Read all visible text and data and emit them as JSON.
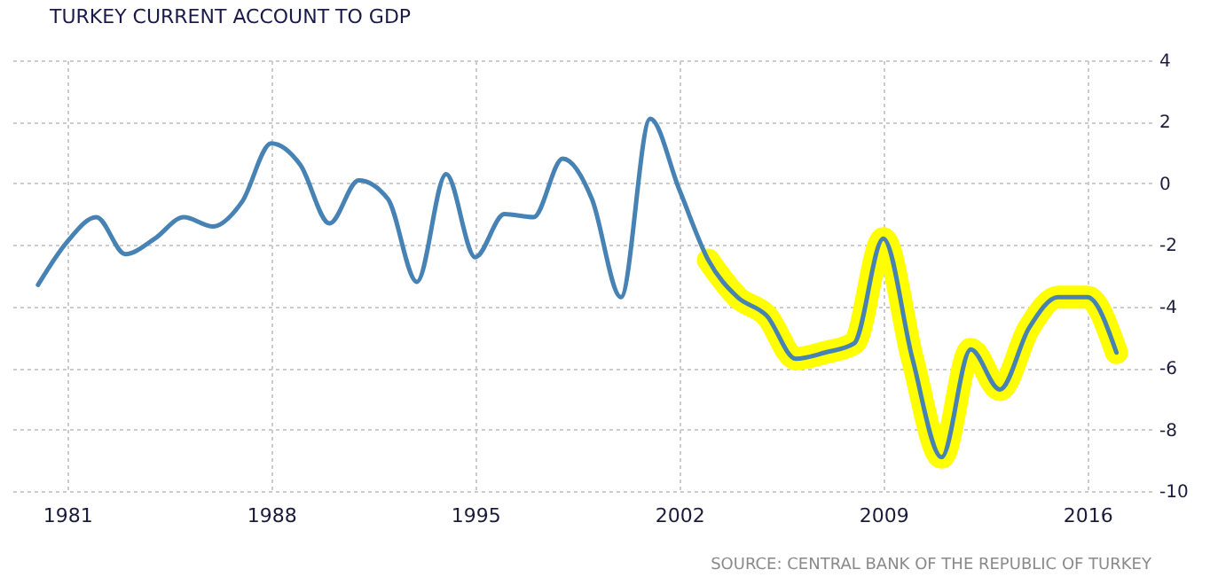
{
  "chart_data": {
    "type": "line",
    "title": "TURKEY CURRENT ACCOUNT TO GDP",
    "annotations": [
      "SOURCE: CENTRAL BANK OF THE REPUBLIC OF TURKEY"
    ],
    "x": [
      1980,
      1981,
      1982,
      1983,
      1984,
      1985,
      1986,
      1987,
      1988,
      1989,
      1990,
      1991,
      1992,
      1993,
      1994,
      1995,
      1996,
      1997,
      1998,
      1999,
      2000,
      2001,
      2002,
      2003,
      2004,
      2005,
      2006,
      2007,
      2008,
      2009,
      2010,
      2011,
      2012,
      2013,
      2014,
      2015,
      2016,
      2017
    ],
    "series": [
      {
        "type": "line",
        "color": "#ffff00",
        "x": [
          2003,
          2004,
          2005,
          2006,
          2007,
          2008,
          2009,
          2010,
          2011,
          2012,
          2013,
          2014,
          2015,
          2016,
          2017
        ],
        "values": [
          -2.5,
          -3.7,
          -4.3,
          -5.7,
          -5.5,
          -5.2,
          -1.8,
          -5.7,
          -8.9,
          -5.4,
          -6.7,
          -4.7,
          -3.7,
          -3.7,
          -5.5
        ]
      },
      {
        "type": "line",
        "color": "#4682b4",
        "values": [
          -3.3,
          -1.9,
          -1.1,
          -2.3,
          -1.8,
          -1.1,
          -1.4,
          -0.6,
          1.3,
          0.6,
          -1.3,
          0.1,
          -0.5,
          -3.2,
          0.3,
          -2.4,
          -1.0,
          -1.1,
          0.8,
          -0.5,
          -3.7,
          2.1,
          -0.2,
          -2.5,
          -3.7,
          -4.3,
          -5.7,
          -5.5,
          -5.2,
          -1.8,
          -5.7,
          -8.9,
          -5.4,
          -6.7,
          -4.7,
          -3.7,
          -3.7,
          -5.5
        ]
      }
    ],
    "xlim": [
      1979,
      2018.2
    ],
    "xticks": [
      1981,
      1988,
      1995,
      2002,
      2009,
      2016
    ],
    "ylim": [
      -10,
      4
    ],
    "yticks": [
      -10,
      -8,
      -6,
      -4,
      -2,
      0,
      2,
      4
    ],
    "grid": true,
    "legend": false
  }
}
